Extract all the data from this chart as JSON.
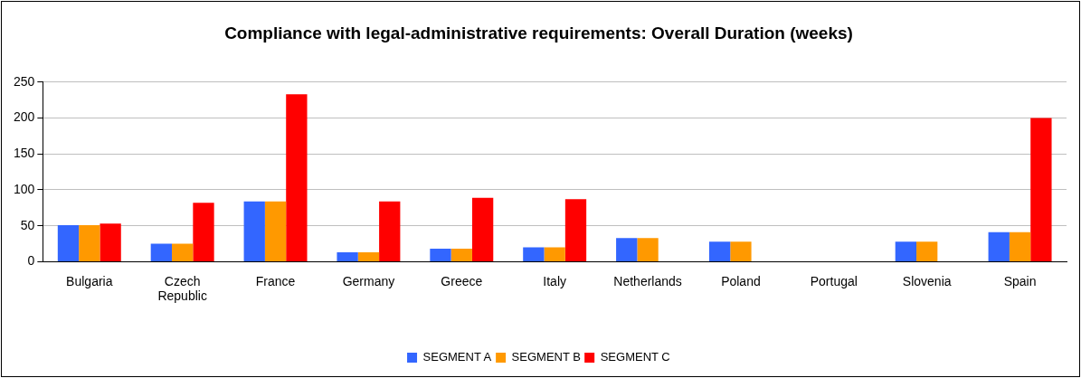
{
  "chart_data": {
    "type": "bar",
    "title": "Compliance with legal-administrative requirements: Overall Duration (weeks)",
    "categories": [
      "Bulgaria",
      "Czech Republic",
      "France",
      "Germany",
      "Greece",
      "Italy",
      "Netherlands",
      "Poland",
      "Portugal",
      "Slovenia",
      "Spain"
    ],
    "series": [
      {
        "name": "SEGMENT A",
        "color": "#3366ff",
        "values": [
          51,
          25,
          84,
          13,
          18,
          20,
          33,
          28,
          null,
          28,
          41
        ]
      },
      {
        "name": "SEGMENT B",
        "color": "#ff9900",
        "values": [
          51,
          25,
          84,
          13,
          18,
          20,
          33,
          28,
          null,
          28,
          41
        ]
      },
      {
        "name": "SEGMENT C",
        "color": "#ff0000",
        "values": [
          53,
          82,
          233,
          84,
          89,
          87,
          null,
          null,
          null,
          null,
          200
        ]
      }
    ],
    "ylim": [
      0,
      250
    ],
    "yticks": [
      0,
      50,
      100,
      150,
      200,
      250
    ],
    "grid": "y",
    "legend": "bottom"
  }
}
